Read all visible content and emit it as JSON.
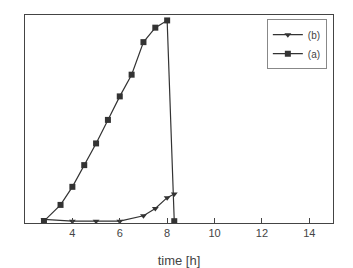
{
  "chart_data": {
    "type": "line",
    "xlabel": "time [h]",
    "series": [
      {
        "name": "(b)",
        "color": "#333333",
        "marker": "triangle-down",
        "x": [
          2.8,
          4.0,
          5.0,
          6.0,
          7.0,
          7.5,
          8.0,
          8.3
        ],
        "values": [
          2,
          1,
          1,
          1,
          4,
          8,
          14,
          16
        ]
      },
      {
        "name": "(a)",
        "color": "#333333",
        "marker": "square",
        "x": [
          2.8,
          3.5,
          4.0,
          4.5,
          5.0,
          5.5,
          6.0,
          6.5,
          7.0,
          7.5,
          8.0,
          8.3
        ],
        "values": [
          1,
          10,
          20,
          32,
          44,
          57,
          70,
          82,
          100,
          108,
          112,
          1
        ]
      }
    ],
    "xlim": [
      2,
      15
    ],
    "ylim": [
      0,
      115
    ],
    "xticks": [
      4,
      6,
      8,
      10,
      12,
      14
    ],
    "tick_labels": "x",
    "legend": "upper right",
    "grid": false
  }
}
